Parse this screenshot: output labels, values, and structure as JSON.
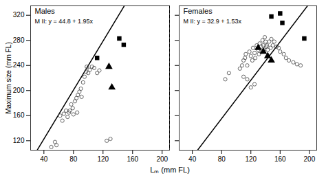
{
  "chart_data": [
    {
      "type": "scatter",
      "title": "Males",
      "annotation": "M II: y = 44.8 + 1.95x",
      "xlabel": "Lₘ (mm FL)",
      "ylabel": "Maximum size (mm FL)",
      "xlim": [
        22,
        210
      ],
      "ylim": [
        105,
        335
      ],
      "xticks": [
        40,
        80,
        120,
        160,
        200
      ],
      "yticks": [
        120,
        160,
        200,
        240,
        280,
        320
      ],
      "regression": {
        "intercept": 44.8,
        "slope": 1.95,
        "color": "#000000"
      },
      "series": [
        {
          "marker": "open_circle",
          "color": "#444444",
          "x": [
            50,
            55,
            57,
            62,
            65,
            67,
            70,
            72,
            74,
            75,
            77,
            79,
            80,
            82,
            84,
            85,
            86,
            88,
            90,
            91,
            93,
            95,
            97,
            98,
            100,
            102,
            105,
            108,
            112,
            115,
            125,
            130
          ],
          "values": [
            110,
            118,
            113,
            160,
            152,
            163,
            168,
            158,
            165,
            168,
            178,
            172,
            162,
            183,
            188,
            165,
            193,
            198,
            203,
            190,
            213,
            222,
            230,
            238,
            228,
            233,
            238,
            236,
            228,
            232,
            120,
            123
          ]
        },
        {
          "marker": "triangle",
          "color": "#000000",
          "x": [
            128,
            132
          ],
          "values": [
            238,
            205
          ]
        },
        {
          "marker": "square",
          "color": "#000000",
          "x": [
            112,
            142,
            148
          ],
          "values": [
            252,
            283,
            273
          ]
        }
      ]
    },
    {
      "type": "scatter",
      "title": "Females",
      "annotation": "M II: y = 32.9 + 1.53x",
      "xlim": [
        22,
        210
      ],
      "ylim": [
        105,
        335
      ],
      "xticks": [
        40,
        80,
        120,
        160,
        200
      ],
      "yticks": [
        120,
        160,
        200,
        240,
        280,
        320
      ],
      "tick_labels": "x",
      "regression": {
        "intercept": 32.9,
        "slope": 1.53,
        "color": "#000000"
      },
      "series": [
        {
          "marker": "open_circle",
          "color": "#444444",
          "x": [
            85,
            90,
            105,
            108,
            110,
            112,
            113,
            115,
            118,
            120,
            122,
            123,
            125,
            126,
            128,
            130,
            131,
            132,
            134,
            135,
            136,
            137,
            138,
            139,
            140,
            141,
            142,
            143,
            145,
            147,
            148,
            150,
            152,
            155,
            158,
            160,
            165,
            168,
            172,
            178,
            183,
            188,
            125,
            120,
            115,
            110
          ],
          "values": [
            218,
            228,
            235,
            240,
            248,
            252,
            258,
            240,
            262,
            255,
            248,
            268,
            260,
            252,
            272,
            265,
            258,
            275,
            270,
            262,
            280,
            272,
            265,
            285,
            278,
            270,
            272,
            265,
            278,
            268,
            282,
            272,
            278,
            270,
            268,
            262,
            258,
            252,
            248,
            245,
            242,
            240,
            210,
            205,
            218,
            222
          ]
        },
        {
          "marker": "triangle",
          "color": "#000000",
          "x": [
            130,
            137,
            143,
            148
          ],
          "values": [
            268,
            262,
            255,
            248
          ]
        },
        {
          "marker": "square",
          "color": "#000000",
          "x": [
            148,
            160,
            163,
            193
          ],
          "values": [
            318,
            323,
            308,
            283
          ]
        }
      ]
    }
  ]
}
